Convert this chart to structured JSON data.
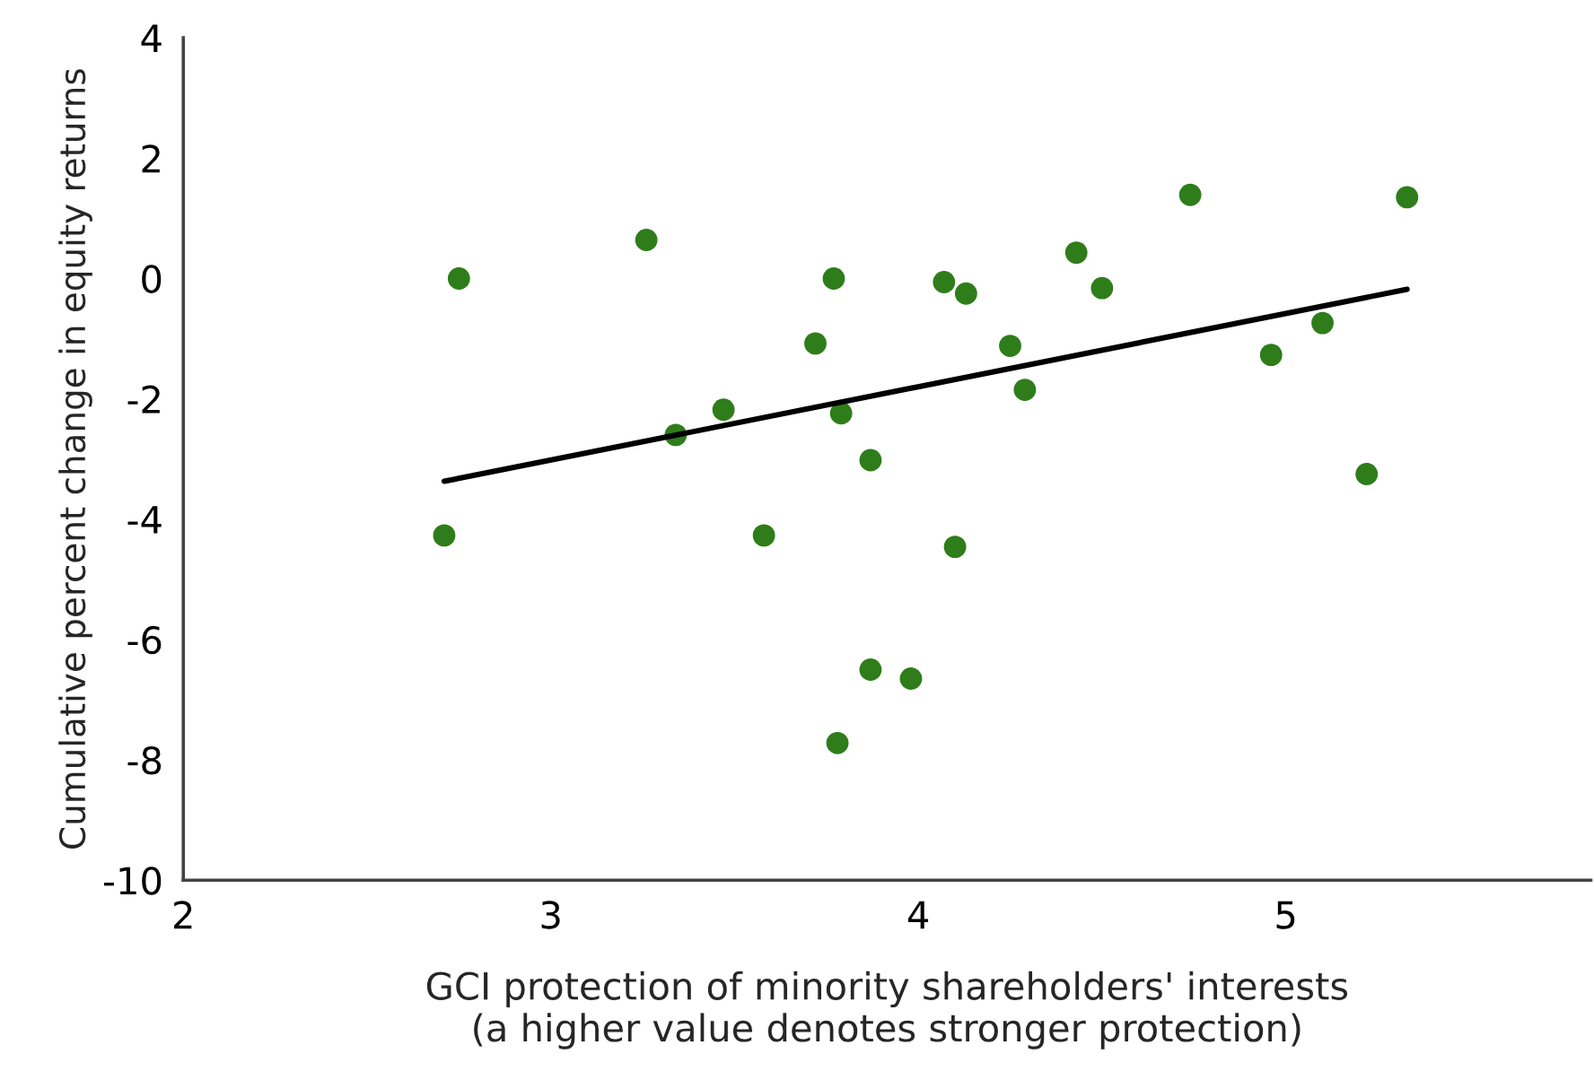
{
  "chart_data": {
    "type": "scatter",
    "xlabel": "GCI protection of minority shareholders' interests\n(a higher value denotes stronger protection)",
    "ylabel": "Cumulative percent change in equity returns",
    "series": [
      {
        "color": "#2e7d1a",
        "marker": "circle",
        "x": [
          2.71,
          2.75,
          3.26,
          3.34,
          3.47,
          3.58,
          3.72,
          3.77,
          3.79,
          3.78,
          3.87,
          3.87,
          3.98,
          4.07,
          4.13,
          4.1,
          4.25,
          4.29,
          4.43,
          4.5,
          4.74,
          4.96,
          5.1,
          5.22,
          5.33
        ],
        "values": [
          -4.27,
          0.0,
          0.64,
          -2.6,
          -2.18,
          -4.27,
          -1.08,
          0.0,
          -2.24,
          -7.72,
          -3.02,
          -6.5,
          -6.65,
          -0.06,
          -0.25,
          -4.46,
          -1.12,
          -1.85,
          0.43,
          -0.16,
          1.39,
          -1.27,
          -0.74,
          -3.25,
          1.35
        ]
      },
      {
        "type": "line",
        "color": "#000000",
        "line_style": "solid",
        "marker": "none",
        "x": [
          2.71,
          5.33
        ],
        "values": [
          -3.37,
          -0.18
        ]
      }
    ],
    "xlim": [
      2,
      5.83
    ],
    "xticks": [
      2,
      3,
      4,
      5
    ],
    "ylim": [
      -10,
      4
    ],
    "yticks": [
      -10,
      -8,
      -6,
      -4,
      -2,
      0,
      2,
      4
    ],
    "grid": false,
    "legend": false
  }
}
